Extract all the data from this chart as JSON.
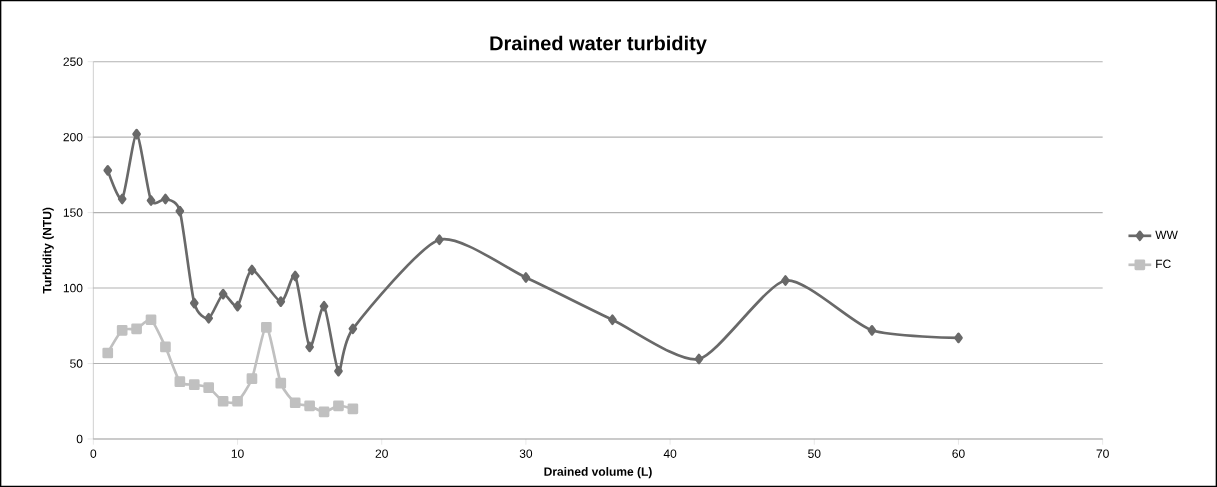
{
  "chart_data": {
    "type": "line",
    "title": "Drained water turbidity",
    "xlabel": "Drained volume (L)",
    "ylabel": "Turbidity (NTU)",
    "xlim": [
      0,
      70
    ],
    "xticks": [
      0,
      10,
      20,
      30,
      40,
      50,
      60,
      70
    ],
    "ylim": [
      0,
      250
    ],
    "yticks": [
      0,
      50,
      100,
      150,
      200,
      250
    ],
    "grid": "y",
    "legend": "right",
    "series": [
      {
        "name": "WW",
        "color": "#696969",
        "marker": "diamond",
        "x": [
          1,
          2,
          3,
          4,
          5,
          6,
          7,
          8,
          9,
          10,
          11,
          13,
          14,
          15,
          16,
          17,
          18,
          24,
          30,
          36,
          42,
          48,
          54,
          60
        ],
        "values": [
          178,
          159,
          202,
          158,
          159,
          151,
          90,
          80,
          96,
          88,
          112,
          91,
          108,
          61,
          88,
          45,
          73,
          132,
          107,
          79,
          53,
          105,
          72,
          67
        ]
      },
      {
        "name": "FC",
        "color": "#c0c0c0",
        "marker": "square",
        "x": [
          1,
          2,
          3,
          4,
          5,
          6,
          7,
          8,
          9,
          10,
          11,
          12,
          13,
          14,
          15,
          16,
          17,
          18
        ],
        "values": [
          57,
          72,
          73,
          79,
          61,
          38,
          36,
          34,
          25,
          25,
          40,
          74,
          37,
          24,
          22,
          18,
          22,
          20
        ]
      }
    ]
  }
}
